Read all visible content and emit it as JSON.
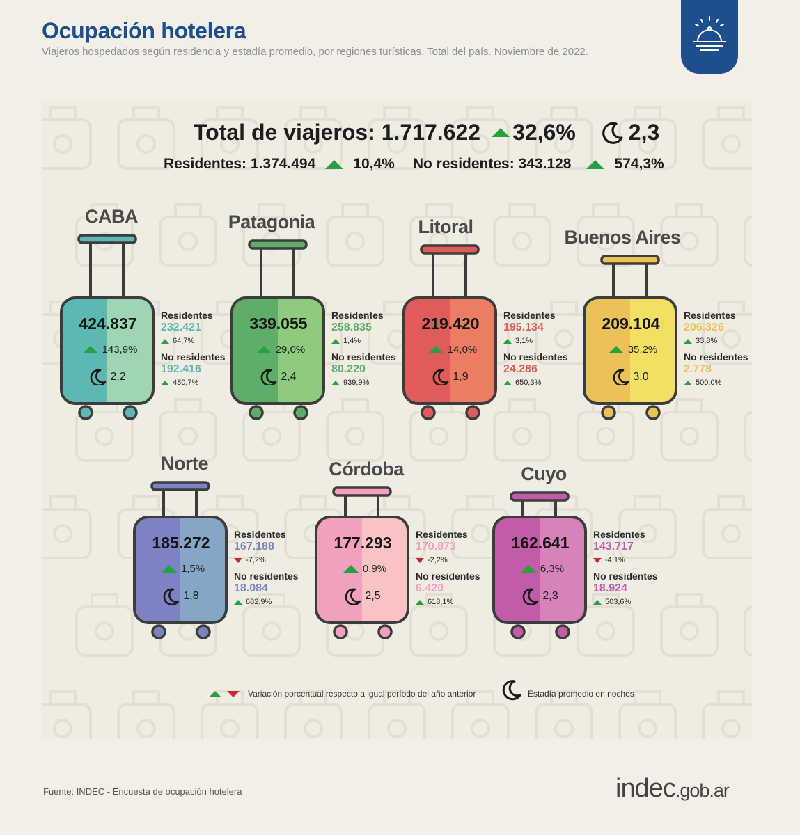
{
  "header": {
    "title": "Ocupación hotelera",
    "subtitle": "Viajeros hospedados según residencia y estadía promedio, por regiones turísticas. Total del país. Noviembre de 2022."
  },
  "icons": {
    "badge": "hotel-bell-icon",
    "stay": "moon-icon",
    "up": "triangle-up-icon",
    "down": "triangle-down-icon"
  },
  "totals": {
    "total_label": "Total de viajeros: 1.717.622",
    "total_change": "32,6%",
    "total_stay": "2,3",
    "residentes": "Residentes: 1.374.494",
    "residentes_change": "10,4%",
    "no_residentes": "No residentes: 343.128",
    "no_residentes_change": "574,3%"
  },
  "labels": {
    "res": "Residentes",
    "nores": "No residentes"
  },
  "regions": [
    {
      "name": "CABA",
      "total": "424.837",
      "change": "143,9%",
      "stay": "2,2",
      "res": "232.421",
      "res_change": "64,7%",
      "res_dir": "up",
      "nores": "192.416",
      "nores_change": "480,7%",
      "nores_dir": "up",
      "color_dark": "#5db7b3",
      "color_light": "#9ed5b3"
    },
    {
      "name": "Patagonia",
      "total": "339.055",
      "change": "29,0%",
      "stay": "2,4",
      "res": "258.835",
      "res_change": "1,4%",
      "res_dir": "up",
      "nores": "80.220",
      "nores_change": "939,9%",
      "nores_dir": "up",
      "color_dark": "#5fae68",
      "color_light": "#8fcb7f"
    },
    {
      "name": "Litoral",
      "total": "219.420",
      "change": "14,0%",
      "stay": "1,9",
      "res": "195.134",
      "res_change": "3,1%",
      "res_dir": "up",
      "nores": "24.286",
      "nores_change": "650,3%",
      "nores_dir": "up",
      "color_dark": "#de5d5a",
      "color_light": "#ec7d63"
    },
    {
      "name": "Buenos Aires",
      "total": "209.104",
      "change": "35,2%",
      "stay": "3,0",
      "res": "206.326",
      "res_change": "33,8%",
      "res_dir": "up",
      "nores": "2.778",
      "nores_change": "500,0%",
      "nores_dir": "up",
      "color_dark": "#eac258",
      "color_light": "#f3e063"
    },
    {
      "name": "Norte",
      "total": "185.272",
      "change": "1,5%",
      "stay": "1,8",
      "res": "167.188",
      "res_change": "-7,2%",
      "res_dir": "down",
      "nores": "18.084",
      "nores_change": "682,9%",
      "nores_dir": "up",
      "color_dark": "#7d83c2",
      "color_light": "#86a6c8"
    },
    {
      "name": "Córdoba",
      "total": "177.293",
      "change": "0,9%",
      "stay": "2,5",
      "res": "170.873",
      "res_change": "-2,2%",
      "res_dir": "down",
      "nores": "6.420",
      "nores_change": "618,1%",
      "nores_dir": "up",
      "color_dark": "#f2a0bd",
      "color_light": "#f9c3c3"
    },
    {
      "name": "Cuyo",
      "total": "162.641",
      "change": "6,3%",
      "stay": "2,3",
      "res": "143.717",
      "res_change": "-4,1%",
      "res_dir": "down",
      "nores": "18.924",
      "nores_change": "503,6%",
      "nores_dir": "up",
      "color_dark": "#c35ca8",
      "color_light": "#d782b8"
    }
  ],
  "legend": {
    "variation": "Variación porcentual respecto a igual período del año anterior",
    "stay": "Estadía promedio en noches"
  },
  "footer": {
    "source": "Fuente: INDEC - Encuesta de ocupación hotelera",
    "logo_main": "indec",
    "logo_suffix": ".gob.ar"
  }
}
